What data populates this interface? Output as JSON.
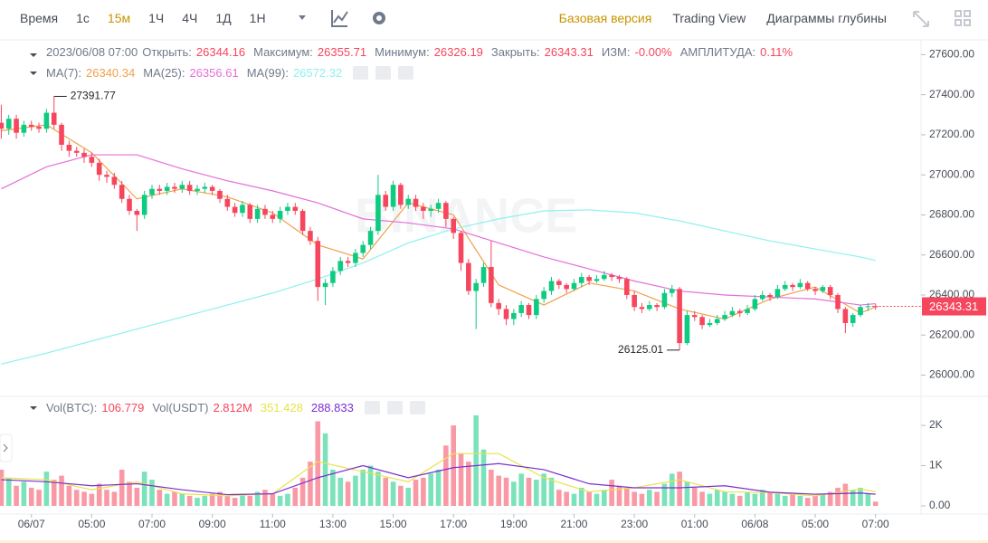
{
  "toolbar": {
    "time_label": "Время",
    "intervals": [
      "1с",
      "15м",
      "1Ч",
      "4Ч",
      "1Д",
      "1Н"
    ],
    "active_interval": 1,
    "views": [
      "Базовая версия",
      "Trading View",
      "Диаграммы глубины"
    ],
    "active_view": 0
  },
  "chart_data": {
    "type": "candlestick",
    "watermark": "BINANCE",
    "legend": {
      "datetime": "2023/06/08 07:00",
      "open_label": "Открыть:",
      "high_label": "Максимум:",
      "low_label": "Минимум:",
      "close_label": "Закрыть:",
      "change_label": "ИЗМ:",
      "change": "-0.00%",
      "amplitude_label": "АМПЛИТУДА:",
      "amplitude": "0.11%"
    },
    "up_color": "#0ecb81",
    "down_color": "#f6465d",
    "candles": [
      [
        27260,
        27350,
        27180,
        27230
      ],
      [
        27230,
        27300,
        27200,
        27280
      ],
      [
        27280,
        27300,
        27180,
        27210
      ],
      [
        27210,
        27270,
        27190,
        27250
      ],
      [
        27250,
        27270,
        27220,
        27240
      ],
      [
        27240,
        27260,
        27210,
        27230
      ],
      [
        27230,
        27330,
        27210,
        27310
      ],
      [
        27310,
        27391.77,
        27230,
        27250
      ],
      [
        27250,
        27260,
        27120,
        27150
      ],
      [
        27150,
        27170,
        27090,
        27120
      ],
      [
        27120,
        27140,
        27090,
        27110
      ],
      [
        27110,
        27130,
        27060,
        27090
      ],
      [
        27090,
        27110,
        27040,
        27060
      ],
      [
        27060,
        27080,
        26970,
        27000
      ],
      [
        27000,
        27020,
        26960,
        26990
      ],
      [
        26990,
        27010,
        26930,
        26950
      ],
      [
        26950,
        26970,
        26860,
        26880
      ],
      [
        26880,
        26900,
        26800,
        26820
      ],
      [
        26820,
        26830,
        26720,
        26800
      ],
      [
        26800,
        26920,
        26780,
        26900
      ],
      [
        26900,
        26950,
        26880,
        26930
      ],
      [
        26930,
        26950,
        26900,
        26920
      ],
      [
        26920,
        26960,
        26900,
        26940
      ],
      [
        26940,
        26960,
        26910,
        26930
      ],
      [
        26930,
        26970,
        26910,
        26950
      ],
      [
        26950,
        26970,
        26900,
        26920
      ],
      [
        26920,
        26950,
        26900,
        26930
      ],
      [
        26930,
        26960,
        26910,
        26940
      ],
      [
        26940,
        26950,
        26900,
        26920
      ],
      [
        26920,
        26930,
        26860,
        26880
      ],
      [
        26880,
        26900,
        26820,
        26840
      ],
      [
        26840,
        26860,
        26790,
        26810
      ],
      [
        26810,
        26870,
        26790,
        26850
      ],
      [
        26850,
        26860,
        26760,
        26780
      ],
      [
        26780,
        26850,
        26760,
        26830
      ],
      [
        26830,
        26850,
        26780,
        26800
      ],
      [
        26800,
        26820,
        26760,
        26780
      ],
      [
        26780,
        26840,
        26760,
        26820
      ],
      [
        26820,
        26860,
        26800,
        26840
      ],
      [
        26840,
        26860,
        26800,
        26820
      ],
      [
        26820,
        26830,
        26700,
        26720
      ],
      [
        26720,
        26740,
        26650,
        26670
      ],
      [
        26670,
        26690,
        26370,
        26440
      ],
      [
        26440,
        26480,
        26350,
        26460
      ],
      [
        26460,
        26540,
        26440,
        26520
      ],
      [
        26520,
        26590,
        26500,
        26570
      ],
      [
        26570,
        26590,
        26540,
        26560
      ],
      [
        26560,
        26630,
        26540,
        26610
      ],
      [
        26610,
        26670,
        26590,
        26650
      ],
      [
        26650,
        26740,
        26630,
        26720
      ],
      [
        26720,
        27000,
        26700,
        26900
      ],
      [
        26900,
        26920,
        26820,
        26840
      ],
      [
        26840,
        26970,
        26820,
        26950
      ],
      [
        26950,
        26960,
        26830,
        26850
      ],
      [
        26850,
        26900,
        26830,
        26880
      ],
      [
        26880,
        26900,
        26820,
        26840
      ],
      [
        26840,
        26860,
        26780,
        26820
      ],
      [
        26820,
        26850,
        26790,
        26830
      ],
      [
        26830,
        26880,
        26810,
        26860
      ],
      [
        26860,
        26870,
        26740,
        26780
      ],
      [
        26780,
        26790,
        26680,
        26710
      ],
      [
        26710,
        26720,
        26520,
        26560
      ],
      [
        26560,
        26580,
        26400,
        26420
      ],
      [
        26420,
        26480,
        26230,
        26460
      ],
      [
        26460,
        26560,
        26440,
        26540
      ],
      [
        26540,
        26670,
        26340,
        26360
      ],
      [
        26360,
        26380,
        26300,
        26330
      ],
      [
        26330,
        26350,
        26250,
        26280
      ],
      [
        26280,
        26330,
        26250,
        26310
      ],
      [
        26310,
        26370,
        26290,
        26350
      ],
      [
        26350,
        26360,
        26280,
        26300
      ],
      [
        26300,
        26400,
        26280,
        26380
      ],
      [
        26380,
        26440,
        26360,
        26420
      ],
      [
        26420,
        26490,
        26400,
        26470
      ],
      [
        26470,
        26480,
        26430,
        26450
      ],
      [
        26450,
        26460,
        26410,
        26430
      ],
      [
        26430,
        26480,
        26420,
        26460
      ],
      [
        26460,
        26510,
        26440,
        26490
      ],
      [
        26490,
        26500,
        26450,
        26470
      ],
      [
        26470,
        26500,
        26460,
        26480
      ],
      [
        26480,
        26520,
        26470,
        26500
      ],
      [
        26500,
        26510,
        26470,
        26490
      ],
      [
        26490,
        26500,
        26460,
        26480
      ],
      [
        26480,
        26490,
        26380,
        26400
      ],
      [
        26400,
        26420,
        26320,
        26340
      ],
      [
        26340,
        26360,
        26310,
        26330
      ],
      [
        26330,
        26370,
        26320,
        26350
      ],
      [
        26350,
        26360,
        26320,
        26340
      ],
      [
        26340,
        26430,
        26330,
        26410
      ],
      [
        26410,
        26450,
        26390,
        26430
      ],
      [
        26430,
        26440,
        26125.01,
        26160
      ],
      [
        26160,
        26320,
        26150,
        26300
      ],
      [
        26300,
        26320,
        26270,
        26290
      ],
      [
        26290,
        26300,
        26230,
        26250
      ],
      [
        26250,
        26280,
        26240,
        26260
      ],
      [
        26260,
        26300,
        26250,
        26280
      ],
      [
        26280,
        26320,
        26270,
        26300
      ],
      [
        26300,
        26340,
        26290,
        26320
      ],
      [
        26320,
        26330,
        26290,
        26310
      ],
      [
        26310,
        26350,
        26300,
        26330
      ],
      [
        26330,
        26400,
        26320,
        26380
      ],
      [
        26380,
        26420,
        26370,
        26400
      ],
      [
        26400,
        26410,
        26370,
        26390
      ],
      [
        26390,
        26450,
        26380,
        26430
      ],
      [
        26430,
        26470,
        26420,
        26450
      ],
      [
        26450,
        26460,
        26420,
        26440
      ],
      [
        26440,
        26480,
        26430,
        26460
      ],
      [
        26460,
        26470,
        26420,
        26430
      ],
      [
        26430,
        26440,
        26400,
        26420
      ],
      [
        26420,
        26450,
        26410,
        26440
      ],
      [
        26440,
        26450,
        26380,
        26400
      ],
      [
        26400,
        26410,
        26310,
        26330
      ],
      [
        26330,
        26340,
        26210,
        26260
      ],
      [
        26260,
        26310,
        26240,
        26300
      ],
      [
        26300,
        26350,
        26290,
        26340
      ],
      [
        26340,
        26360,
        26320,
        26344.16
      ],
      [
        26344.16,
        26355.71,
        26326.19,
        26343.31
      ]
    ],
    "ylim": [
      25930,
      27665
    ],
    "yticks": [
      {
        "value": 27600,
        "label": "27600.00"
      },
      {
        "value": 27400,
        "label": "27400.00"
      },
      {
        "value": 27200,
        "label": "27200.00"
      },
      {
        "value": 27000,
        "label": "27000.00"
      },
      {
        "value": 26800,
        "label": "26800.00"
      },
      {
        "value": 26600,
        "label": "26600.00"
      },
      {
        "value": 26400,
        "label": "26400.00"
      },
      {
        "value": 26200,
        "label": "26200.00"
      },
      {
        "value": 26000,
        "label": "26000.00"
      }
    ],
    "xticks": [
      {
        "value": 4,
        "label": "06/07"
      },
      {
        "value": 12,
        "label": "05:00"
      },
      {
        "value": 20,
        "label": "07:00"
      },
      {
        "value": 28,
        "label": "09:00"
      },
      {
        "value": 36,
        "label": "11:00"
      },
      {
        "value": 44,
        "label": "13:00"
      },
      {
        "value": 52,
        "label": "15:00"
      },
      {
        "value": 60,
        "label": "17:00"
      },
      {
        "value": 68,
        "label": "19:00"
      },
      {
        "value": 76,
        "label": "21:00"
      },
      {
        "value": 84,
        "label": "23:00"
      },
      {
        "value": 92,
        "label": "01:00"
      },
      {
        "value": 100,
        "label": "06/08"
      },
      {
        "value": 108,
        "label": "05:00"
      },
      {
        "value": 116,
        "label": "07:00"
      }
    ],
    "ma_index": [
      0,
      6,
      12,
      18,
      24,
      30,
      36,
      42,
      48,
      54,
      60,
      66,
      72,
      78,
      84,
      90,
      96,
      102,
      108,
      114,
      116
    ],
    "ma": [
      {
        "name": "MA(7):",
        "color": "#f0a04b",
        "values": [
          27220,
          27250,
          27110,
          26880,
          26930,
          26890,
          26810,
          26650,
          26580,
          26860,
          26800,
          26450,
          26350,
          26460,
          26420,
          26330,
          26280,
          26380,
          26440,
          26310,
          26340.34
        ]
      },
      {
        "name": "MA(25):",
        "color": "#e46fd9",
        "values": [
          26930,
          27040,
          27100,
          27100,
          27030,
          26970,
          26920,
          26860,
          26780,
          26760,
          26730,
          26660,
          26590,
          26530,
          26470,
          26420,
          26400,
          26390,
          26380,
          26350,
          26356.61
        ]
      },
      {
        "name": "MA(99):",
        "color": "#8ef0f0",
        "values": [
          26055,
          26110,
          26170,
          26230,
          26290,
          26350,
          26410,
          26480,
          26560,
          26660,
          26730,
          26780,
          26820,
          26825,
          26810,
          26770,
          26720,
          26670,
          26630,
          26590,
          26572.32
        ]
      }
    ],
    "volume": {
      "title": "Vol(BTC):",
      "quote_title": "Vol(USDT)",
      "quote_value": "2.812M",
      "values": [
        900,
        700,
        500,
        600,
        450,
        400,
        850,
        650,
        750,
        500,
        400,
        350,
        300,
        550,
        400,
        350,
        900,
        600,
        450,
        850,
        650,
        400,
        300,
        350,
        300,
        250,
        200,
        250,
        300,
        350,
        250,
        200,
        300,
        250,
        350,
        400,
        300,
        250,
        300,
        450,
        700,
        1100,
        2100,
        1800,
        900,
        700,
        600,
        750,
        900,
        1000,
        850,
        700,
        600,
        500,
        450,
        650,
        700,
        800,
        900,
        1500,
        2000,
        1300,
        1100,
        2250,
        1400,
        900,
        750,
        700,
        600,
        800,
        700,
        650,
        800,
        700,
        400,
        350,
        300,
        450,
        350,
        300,
        400,
        650,
        500,
        450,
        350,
        300,
        400,
        350,
        550,
        800,
        850,
        600,
        450,
        350,
        300,
        400,
        350,
        300,
        250,
        350,
        300,
        400,
        350,
        300,
        250,
        300,
        250,
        200,
        250,
        300,
        350,
        450,
        550,
        400,
        450,
        300,
        106.779
      ],
      "ylim": [
        0,
        2630
      ],
      "yticks": [
        {
          "value": 0,
          "label": "0.00"
        },
        {
          "value": 1000,
          "label": "1K"
        },
        {
          "value": 2000,
          "label": "2K"
        }
      ],
      "ma": [
        {
          "color": "#e8e34a",
          "values": [
            700,
            650,
            400,
            600,
            300,
            250,
            300,
            1100,
            850,
            600,
            1300,
            1300,
            700,
            350,
            450,
            650,
            350,
            330,
            250,
            420,
            351.428
          ]
        },
        {
          "color": "#7b2fd1",
          "values": [
            650,
            600,
            500,
            550,
            400,
            280,
            300,
            700,
            1000,
            700,
            950,
            1050,
            900,
            550,
            450,
            450,
            500,
            340,
            290,
            320,
            288.833
          ]
        }
      ]
    }
  }
}
